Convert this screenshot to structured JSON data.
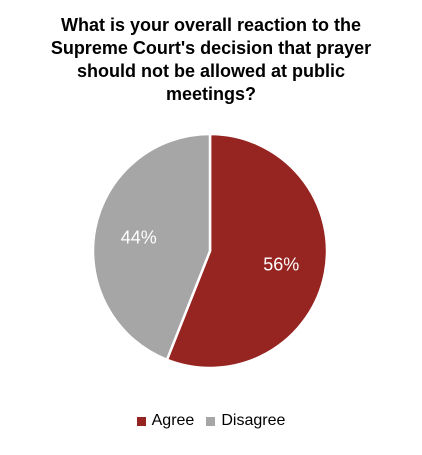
{
  "chart_data": {
    "type": "pie",
    "title": "What is your overall reaction to the Supreme Court's decision that prayer should not be allowed at public meetings?",
    "categories": [
      "Agree",
      "Disagree"
    ],
    "values": [
      56,
      44
    ],
    "data_labels": [
      "56%",
      "44%"
    ],
    "colors": [
      "#962421",
      "#a6a6a6"
    ],
    "legend_position": "bottom",
    "start": "top, clockwise"
  }
}
